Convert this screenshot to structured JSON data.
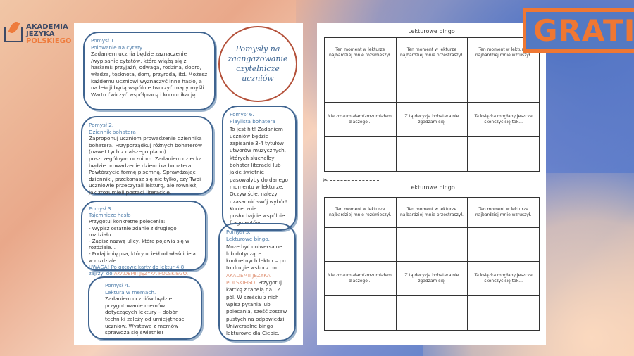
{
  "logo": {
    "line1": "AKADEMIA",
    "line2": "JĘZYKA",
    "line3": "POLSKIEGO"
  },
  "badge": "GRATIS",
  "left_page": {
    "title": "Pomysły na zaangażowanie czytelnicze uczniów",
    "ideas": [
      {
        "num": "Pomysł 1.",
        "name": "Polowanie na cytaty",
        "text": "Zadaniem ucznia będzie zaznaczenie /wypisanie cytatów, które wiążą się z hasłami: przyjaźń, odwaga, rodzina, dobro, władza, tęsknota, dom, przyroda, itd. Możesz każdemu uczniowi wyznaczyć inne hasło, a na lekcji będą wspólnie tworzyć mapy myśli.",
        "extra": "Warto ćwiczyć współpracę i komunikację."
      },
      {
        "num": "Pomysł 2.",
        "name": "Dziennik bohatera",
        "text": "Zaproponuj uczniom prowadzenie dziennika bohatera. Przyporządkuj różnych bohaterów (nawet tych z dalszego planu) poszczególnym uczniom. Zadaniem dziecka będzie prowadzenie dziennika bohatera. Powtórzycie formę pisemną. Sprawdzając dzienniki, przekonasz się nie tylko, czy Twoi uczniowie przeczytali lekturę, ale również, jak zrozumieli postaci literackie."
      },
      {
        "num": "Pomysł 3.",
        "name": "Tajemnicze hasło",
        "text": "Przygotuj konkretne polecenia:",
        "items": [
          "- Wypisz ostatnie zdanie z drugiego rozdziału.",
          "- Zapisz nazwę ulicy, która pojawia się w rozdziale...",
          "- Podaj imię psa, który uciekł od właściciela w rozdziale..."
        ],
        "note": "UWAGA! Po gotowe karty do lektur 4-8 zajrzyj do",
        "link": "AKADEMII JĘZYKA POLSKIEGO."
      },
      {
        "num": "Pomysł 4.",
        "name": "Lektura w memach.",
        "text": "Zadaniem uczniów będzie przygotowanie memów dotyczących lektury – dobór techniki zależy od umiejętności uczniów. Wystawa z memów sprawdza się świetnie!"
      },
      {
        "num": "Pomysł 5.",
        "name": "Lekturowe bingo.",
        "text": "Może być uniwersalne lub dotyczące konkretnych lektur – po to drugie wskocz do",
        "link": "AKADEMII JĘZYKA POLSKIEGO.",
        "text2": "Przygotuj kartkę z tabelą na 12 pól. W sześciu z nich wpisz pytania lub polecania, sześć zostaw pustych na odpowiedzi. Uniwersalne bingo lekturowe dla Ciebie."
      },
      {
        "num": "Pomysł 6.",
        "name": "Playlista bohatera",
        "text": "To jest hit! Zadaniem uczniów będzie zapisanie 3-4 tytułów utworów muzycznych, których słuchałby bohater literacki lub jakie świetnie pasowałyby do danego momentu w lekturze. Oczywiście, należy uzasadnić swój wybór! Koniecznie posłuchajcie wspólnie fragmentów."
      }
    ]
  },
  "bingo": {
    "title": "Lekturowe bingo",
    "rows": [
      [
        "Ten moment w lekturze najbardziej mnie rozśmieszył.",
        "Ten moment w lekturze najbardziej mnie przestraszył.",
        "Ten moment w lekturze najbardziej mnie wzruszył."
      ],
      [
        "",
        "",
        ""
      ],
      [
        "Nie zrozumiałam/zrozumiałem, dlaczego...",
        "Z tą decyzją bohatera nie zgadzam się.",
        "Ta książka mogłaby jeszcze skończyć się tak..."
      ],
      [
        "",
        "",
        ""
      ]
    ]
  }
}
